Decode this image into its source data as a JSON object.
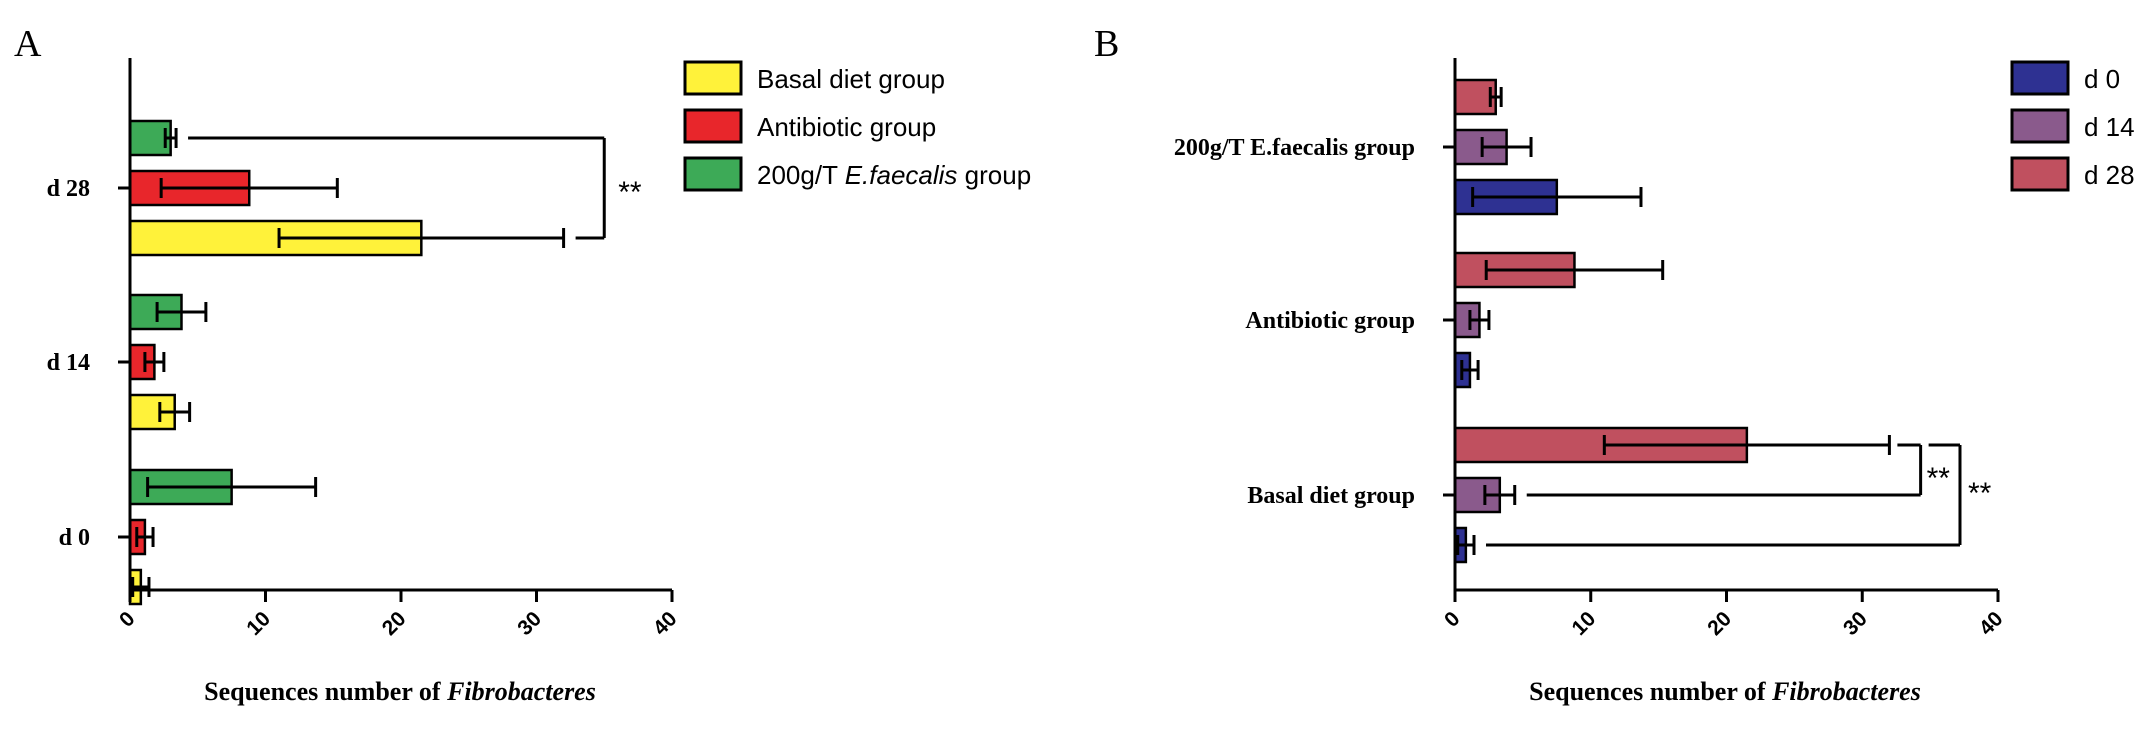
{
  "chart_data": [
    {
      "type": "bar",
      "orientation": "horizontal",
      "panel_label": "A",
      "categories": [
        "d 0",
        "d 14",
        "d 28"
      ],
      "series": [
        {
          "name": "Basal diet group",
          "name_prefix": "Basal diet group",
          "name_italic": "",
          "name_suffix": "",
          "color": "#FFF23A",
          "values": [
            0.8,
            3.3,
            21.5
          ],
          "errors": [
            0.6,
            1.1,
            10.5
          ]
        },
        {
          "name": "Antibiotic group",
          "name_prefix": "Antibiotic group",
          "name_italic": "",
          "name_suffix": "",
          "color": "#E8262B",
          "values": [
            1.1,
            1.8,
            8.8
          ],
          "errors": [
            0.6,
            0.7,
            6.5
          ]
        },
        {
          "name": "200g/T E.faecalis group",
          "name_prefix": "200g/T ",
          "name_italic": "E.faecalis",
          "name_suffix": " group",
          "color": "#3DAA57",
          "values": [
            7.5,
            3.8,
            3.0
          ],
          "errors": [
            6.2,
            1.8,
            0.4
          ]
        }
      ],
      "xlabel_prefix": "Sequences number of ",
      "xlabel_italic": "Fibrobacteres",
      "xlim": [
        0,
        40
      ],
      "xticks": [
        "0",
        "10",
        "20",
        "30",
        "40"
      ],
      "legend": "right",
      "significance": [
        {
          "label": "**",
          "between": [
            "d 28 / Basal diet group",
            "d 28 / 200g/T E.faecalis group"
          ]
        }
      ]
    },
    {
      "type": "bar",
      "orientation": "horizontal",
      "panel_label": "B",
      "categories": [
        "Basal diet group",
        "Antibiotic group",
        "200g/T E.faecalis group"
      ],
      "series": [
        {
          "name": "d 0",
          "color": "#2E3192",
          "values": [
            0.8,
            1.1,
            7.5
          ],
          "errors": [
            0.6,
            0.6,
            6.2
          ]
        },
        {
          "name": "d 14",
          "color": "#8A5A8C",
          "values": [
            3.3,
            1.8,
            3.8
          ],
          "errors": [
            1.1,
            0.7,
            1.8
          ]
        },
        {
          "name": "d 28",
          "color": "#C0505F",
          "values": [
            21.5,
            8.8,
            3.0
          ],
          "errors": [
            10.5,
            6.5,
            0.4
          ]
        }
      ],
      "xlabel_prefix": "Sequences number of ",
      "xlabel_italic": "Fibrobacteres",
      "xlim": [
        0,
        40
      ],
      "xticks": [
        "0",
        "10",
        "20",
        "30",
        "40"
      ],
      "legend": "right",
      "significance": [
        {
          "label": "**",
          "between": [
            "Basal diet group / d 28",
            "Basal diet group / d 14"
          ]
        },
        {
          "label": "**",
          "between": [
            "Basal diet group / d 28",
            "Basal diet group / d 0"
          ]
        }
      ]
    }
  ]
}
